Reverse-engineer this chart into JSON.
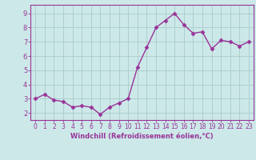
{
  "x": [
    0,
    1,
    2,
    3,
    4,
    5,
    6,
    7,
    8,
    9,
    10,
    11,
    12,
    13,
    14,
    15,
    16,
    17,
    18,
    19,
    20,
    21,
    22,
    23
  ],
  "y": [
    3.0,
    3.3,
    2.9,
    2.8,
    2.4,
    2.5,
    2.4,
    1.9,
    2.4,
    2.7,
    3.0,
    5.2,
    6.6,
    8.0,
    8.5,
    9.0,
    8.2,
    7.6,
    7.7,
    6.5,
    7.1,
    7.0,
    6.7,
    7.0
  ],
  "line_color": "#993399",
  "marker": "D",
  "marker_size": 2.5,
  "bg_color": "#cce8e8",
  "grid_color": "#aacccc",
  "xlabel": "Windchill (Refroidissement éolien,°C)",
  "xlabel_color": "#993399",
  "tick_color": "#993399",
  "label_color": "#993399",
  "ylim": [
    1.5,
    9.6
  ],
  "yticks": [
    2,
    3,
    4,
    5,
    6,
    7,
    8,
    9
  ],
  "xlim": [
    -0.5,
    23.5
  ],
  "xticks": [
    0,
    1,
    2,
    3,
    4,
    5,
    6,
    7,
    8,
    9,
    10,
    11,
    12,
    13,
    14,
    15,
    16,
    17,
    18,
    19,
    20,
    21,
    22,
    23
  ],
  "tick_fontsize": 5.5,
  "xlabel_fontsize": 6.0,
  "linewidth": 1.0
}
